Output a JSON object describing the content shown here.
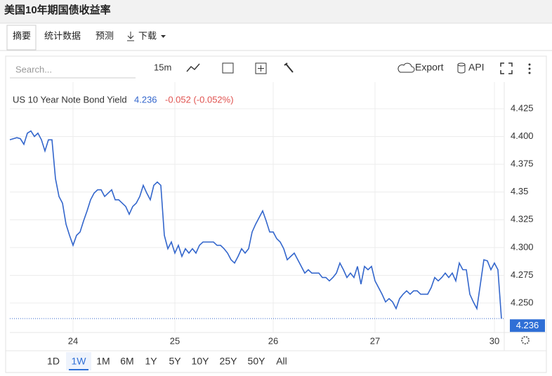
{
  "header": {
    "title": "美国10年期国债收益率"
  },
  "tabs": [
    "摘要",
    "统计数据",
    "预测",
    "下载"
  ],
  "toolbar": {
    "search_placeholder": "Search...",
    "interval": "15m",
    "export": "Export",
    "api": "API"
  },
  "ranges": [
    "1D",
    "1W",
    "1M",
    "6M",
    "1Y",
    "5Y",
    "10Y",
    "25Y",
    "50Y",
    "All"
  ],
  "active_range": 1,
  "chart_data": {
    "type": "line",
    "legend": {
      "name": "US 10 Year Note Bond Yield",
      "last": 4.236,
      "change": "-0.052 (-0.052%)"
    },
    "price_tag": 4.236,
    "xlim": [
      0,
      140
    ],
    "xticks": [
      {
        "value": 18,
        "label": "24"
      },
      {
        "value": 47,
        "label": "25"
      },
      {
        "value": 75,
        "label": "26"
      },
      {
        "value": 104,
        "label": "27"
      },
      {
        "value": 138,
        "label": "30"
      }
    ],
    "ylim": [
      4.225,
      4.44
    ],
    "yticks": [
      {
        "value": 4.25,
        "label": "4.250"
      },
      4.275,
      {
        "value": 4.3,
        "label": "4.300"
      },
      4.325,
      4.35,
      4.375,
      {
        "value": 4.4,
        "label": "4.400"
      },
      4.425
    ],
    "grid": true,
    "series": [
      {
        "name": "US 10 Year Note Bond Yield",
        "color": "#3366cc",
        "values": [
          4.397,
          4.398,
          4.399,
          4.398,
          4.393,
          4.403,
          4.405,
          4.4,
          4.403,
          4.397,
          4.387,
          4.397,
          4.397,
          4.362,
          4.346,
          4.34,
          4.321,
          4.311,
          4.302,
          4.311,
          4.314,
          4.324,
          4.333,
          4.343,
          4.349,
          4.352,
          4.352,
          4.346,
          4.349,
          4.352,
          4.343,
          4.343,
          4.34,
          4.337,
          4.33,
          4.337,
          4.34,
          4.346,
          4.356,
          4.349,
          4.343,
          4.356,
          4.359,
          4.356,
          4.311,
          4.299,
          4.305,
          4.295,
          4.302,
          4.292,
          4.299,
          4.295,
          4.299,
          4.295,
          4.302,
          4.305,
          4.305,
          4.305,
          4.305,
          4.302,
          4.302,
          4.299,
          4.295,
          4.289,
          4.286,
          4.292,
          4.299,
          4.295,
          4.299,
          4.314,
          4.321,
          4.327,
          4.333,
          4.324,
          4.314,
          4.314,
          4.308,
          4.305,
          4.299,
          4.289,
          4.292,
          4.295,
          4.289,
          4.283,
          4.277,
          4.28,
          4.277,
          4.277,
          4.277,
          4.273,
          4.273,
          4.27,
          4.273,
          4.277,
          4.286,
          4.28,
          4.273,
          4.277,
          4.273,
          4.283,
          4.267,
          4.283,
          4.28,
          4.283,
          4.27,
          4.264,
          4.258,
          4.251,
          4.254,
          4.251,
          4.245,
          4.254,
          4.258,
          4.261,
          4.258,
          4.261,
          4.261,
          4.258,
          4.258,
          4.258,
          4.264,
          4.273,
          4.27,
          4.273,
          4.277,
          4.273,
          4.277,
          4.27,
          4.286,
          4.28,
          4.28,
          4.258,
          4.251,
          4.245,
          4.267,
          4.289,
          4.288,
          4.28,
          4.286,
          4.28,
          4.236
        ]
      }
    ]
  }
}
